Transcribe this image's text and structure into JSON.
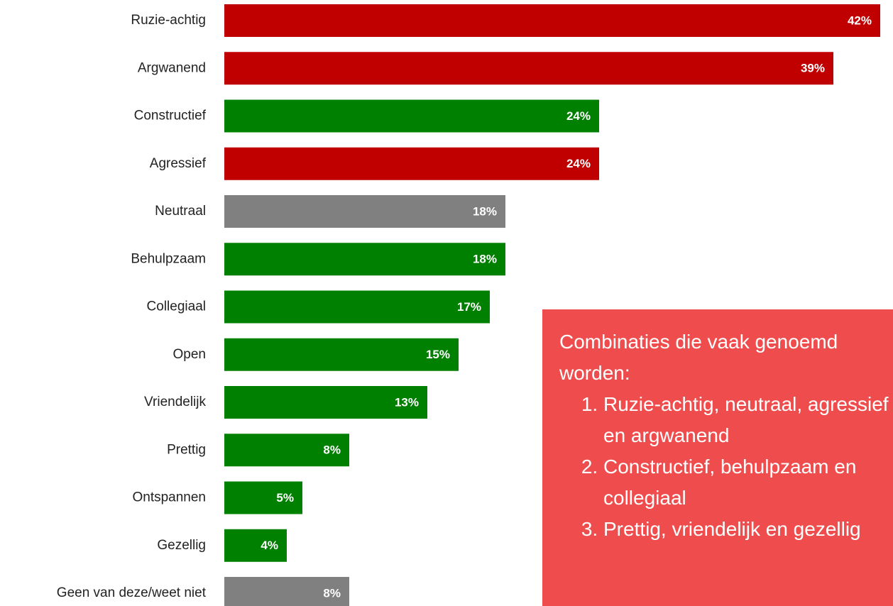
{
  "chart_data": {
    "type": "bar",
    "orientation": "horizontal",
    "categories": [
      "Ruzie-achtig",
      "Argwanend",
      "Constructief",
      "Agressief",
      "Neutraal",
      "Behulpzaam",
      "Collegiaal",
      "Open",
      "Vriendelijk",
      "Prettig",
      "Ontspannen",
      "Gezellig",
      "Geen van deze/weet niet"
    ],
    "values": [
      42,
      39,
      24,
      24,
      18,
      18,
      17,
      15,
      13,
      8,
      5,
      4,
      8
    ],
    "value_labels": [
      "42%",
      "39%",
      "24%",
      "24%",
      "18%",
      "18%",
      "17%",
      "15%",
      "13%",
      "8%",
      "5%",
      "4%",
      "8%"
    ],
    "colors": [
      "#c00000",
      "#c00000",
      "#008000",
      "#c00000",
      "#808080",
      "#008000",
      "#008000",
      "#008000",
      "#008000",
      "#008000",
      "#008000",
      "#008000",
      "#808080"
    ],
    "annotation": {
      "heading": "Combinaties die vaak genoemd worden:",
      "items": [
        "Ruzie-achtig, neutraal, agressief en argwanend",
        "Constructief, behulpzaam en collegiaal",
        "Prettig, vriendelijk en gezellig"
      ]
    }
  }
}
